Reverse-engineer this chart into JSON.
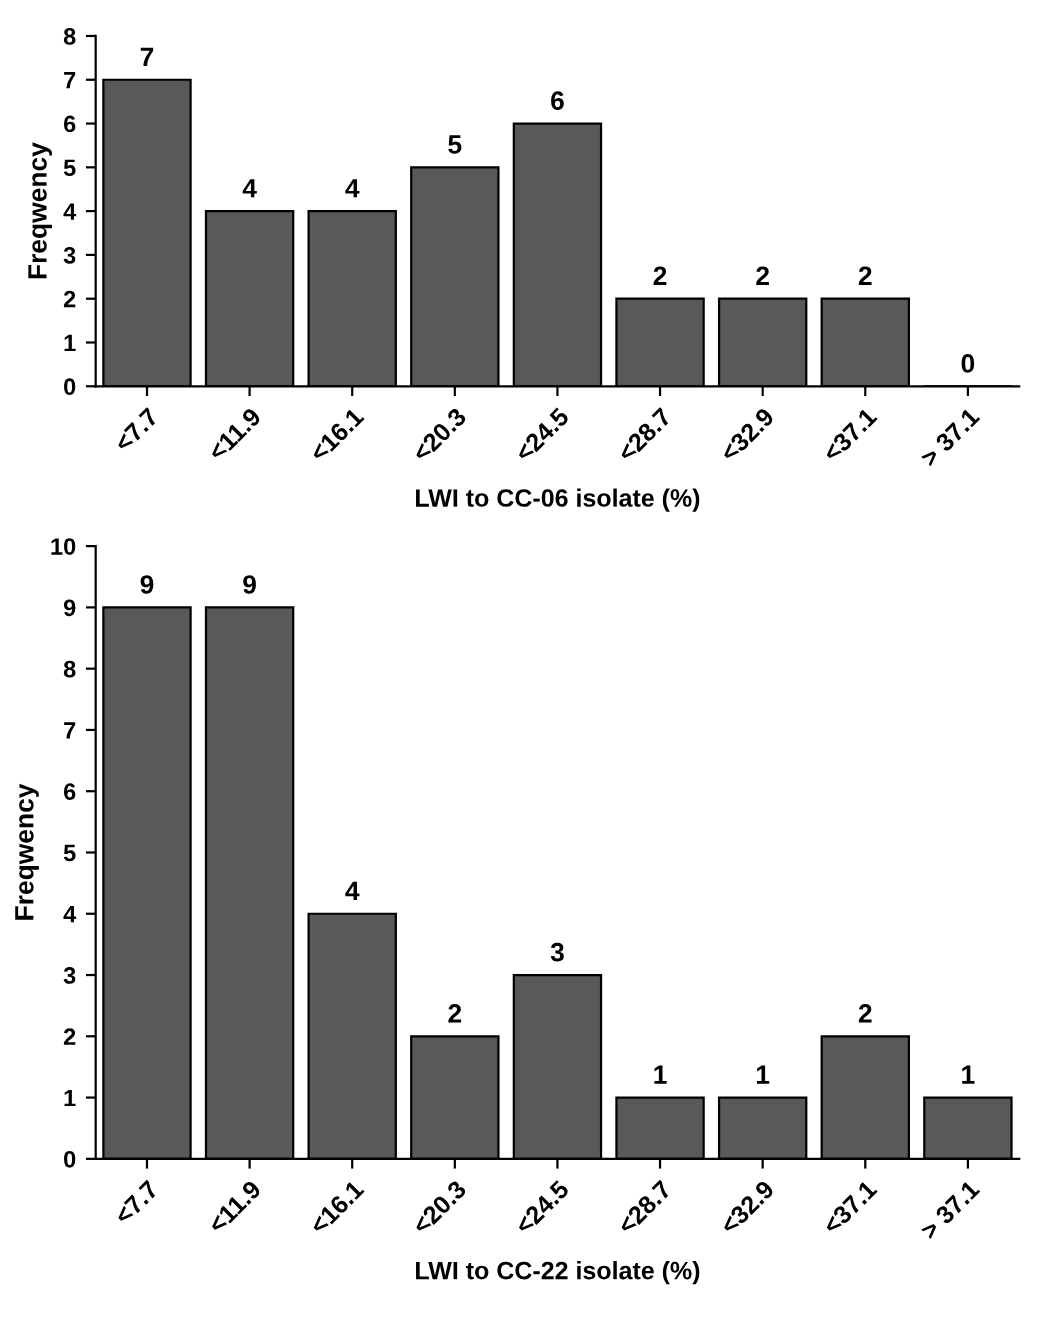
{
  "chart_data": [
    {
      "type": "bar",
      "xlabel": "LWI to CC-06 isolate (%)",
      "ylabel": "Freqwency",
      "categories": [
        "<7.7",
        "<11.9",
        "<16.1",
        "<20.3",
        "<24.5",
        "<28.7",
        "<32.9",
        "<37.1",
        "> 37.1"
      ],
      "values": [
        7,
        4,
        4,
        5,
        6,
        2,
        2,
        2,
        0
      ],
      "color": "#595959",
      "ylim": [
        0,
        8
      ],
      "yticks": [
        0,
        1,
        2,
        3,
        4,
        5,
        6,
        7,
        8
      ],
      "data_labels": true,
      "grid": false,
      "legend": false
    },
    {
      "type": "bar",
      "xlabel": "LWI to CC-22 isolate (%)",
      "ylabel": "Freqwency",
      "categories": [
        "<7.7",
        "<11.9",
        "<16.1",
        "<20.3",
        "<24.5",
        "<28.7",
        "<32.9",
        "<37.1",
        "> 37.1"
      ],
      "values": [
        9,
        9,
        4,
        2,
        3,
        1,
        1,
        2,
        1
      ],
      "color": "#595959",
      "ylim": [
        0,
        10
      ],
      "yticks": [
        0,
        1,
        2,
        3,
        4,
        5,
        6,
        7,
        8,
        9,
        10
      ],
      "data_labels": true,
      "grid": false,
      "legend": false
    }
  ]
}
